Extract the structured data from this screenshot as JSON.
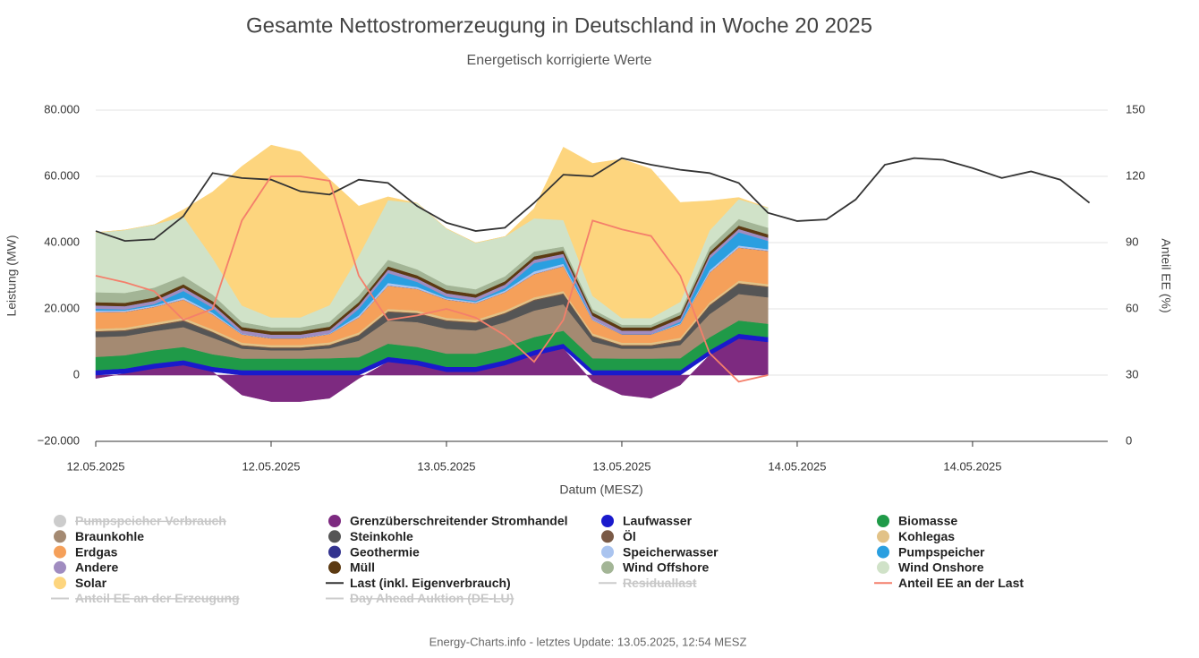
{
  "chart_data": {
    "type": "area",
    "title": "Gesamte Nettostromerzeugung in Deutschland in Woche 20 2025",
    "subtitle": "Energetisch korrigierte Werte",
    "x_label": "Datum (MESZ)",
    "y_label": "Leistung (MW)",
    "y2_label": "Anteil EE (%)",
    "footer": "Energy-Charts.info - letztes Update: 13.05.2025, 12:54 MESZ",
    "stacked": true,
    "grid": true,
    "legend": "bottom",
    "x": [
      0,
      2,
      4,
      6,
      8,
      10,
      12,
      14,
      16,
      18,
      20,
      22,
      24,
      26,
      28,
      30,
      32,
      34,
      36,
      38,
      40,
      42,
      44,
      46,
      48,
      50,
      52,
      54,
      56,
      58,
      60,
      62,
      64,
      66,
      68
    ],
    "xlim": [
      0,
      69.25
    ],
    "xticks": [
      {
        "value": 0,
        "label": "12.05.2025"
      },
      {
        "value": 12,
        "label": "12.05.2025"
      },
      {
        "value": 24,
        "label": "13.05.2025"
      },
      {
        "value": 36,
        "label": "13.05.2025"
      },
      {
        "value": 48,
        "label": "14.05.2025"
      },
      {
        "value": 60,
        "label": "14.05.2025"
      }
    ],
    "ylim": [
      -20000,
      80000
    ],
    "yticks": [
      {
        "value": -20000,
        "label": "−20.000"
      },
      0,
      {
        "value": 20000,
        "label": "20.000"
      },
      {
        "value": 40000,
        "label": "40.000"
      },
      {
        "value": 60000,
        "label": "60.000"
      },
      {
        "value": 80000,
        "label": "80.000"
      }
    ],
    "y2lim": [
      0,
      150
    ],
    "y2ticks": [
      0,
      30,
      60,
      90,
      120,
      150
    ],
    "series": [
      {
        "name": "Pumpspeicher Verbrauch",
        "type": "area",
        "color": "#cccccc",
        "visible": false
      },
      {
        "name": "Grenzüberschreitender Stromhandel",
        "type": "area",
        "color": "#7d2a80",
        "values": [
          -1000,
          500,
          2000,
          3000,
          1000,
          -6000,
          -8000,
          -8000,
          -7000,
          -1000,
          4000,
          3000,
          1000,
          1000,
          3000,
          6000,
          8000,
          -2000,
          -6000,
          -7000,
          -3000,
          6000,
          11000,
          10000,
          null,
          null,
          null,
          null,
          null,
          null,
          null,
          null,
          null,
          null,
          null
        ]
      },
      {
        "name": "Laufwasser",
        "type": "area",
        "color": "#1a1acc",
        "values": [
          1500,
          1500,
          1500,
          1500,
          1500,
          1500,
          1500,
          1500,
          1500,
          1500,
          1500,
          1500,
          1500,
          1500,
          1500,
          1500,
          1500,
          1500,
          1500,
          1500,
          1500,
          1500,
          1500,
          1500,
          null,
          null,
          null,
          null,
          null,
          null,
          null,
          null,
          null,
          null,
          null
        ]
      },
      {
        "name": "Biomasse",
        "type": "area",
        "color": "#1f9a48",
        "values": [
          4000,
          4000,
          4000,
          4000,
          3800,
          3500,
          3500,
          3500,
          3600,
          3900,
          4000,
          4000,
          4000,
          4000,
          4000,
          4000,
          3900,
          3600,
          3500,
          3500,
          3600,
          3900,
          4000,
          4000,
          null,
          null,
          null,
          null,
          null,
          null,
          null,
          null,
          null,
          null,
          null
        ]
      },
      {
        "name": "Braunkohle",
        "type": "area",
        "color": "#a48a72",
        "values": [
          6000,
          5800,
          5800,
          6000,
          5000,
          3000,
          2500,
          2500,
          3000,
          5000,
          7000,
          7500,
          7500,
          7000,
          7500,
          8000,
          8000,
          5000,
          3000,
          3000,
          4000,
          7000,
          8000,
          8000,
          null,
          null,
          null,
          null,
          null,
          null,
          null,
          null,
          null,
          null,
          null
        ]
      },
      {
        "name": "Steinkohle",
        "type": "area",
        "color": "#555555",
        "values": [
          1500,
          1500,
          1500,
          1800,
          1500,
          800,
          600,
          600,
          800,
          1500,
          2500,
          2500,
          2300,
          2200,
          2500,
          3000,
          3000,
          1500,
          800,
          800,
          1200,
          2500,
          3000,
          3000,
          null,
          null,
          null,
          null,
          null,
          null,
          null,
          null,
          null,
          null,
          null
        ]
      },
      {
        "name": "Öl",
        "type": "area",
        "color": "#7a5a46",
        "values": [
          300,
          300,
          300,
          300,
          300,
          300,
          300,
          300,
          300,
          300,
          300,
          300,
          300,
          300,
          300,
          300,
          300,
          300,
          300,
          300,
          300,
          300,
          300,
          300,
          null,
          null,
          null,
          null,
          null,
          null,
          null,
          null,
          null,
          null,
          null
        ]
      },
      {
        "name": "Kohlegas",
        "type": "area",
        "color": "#e2c287",
        "values": [
          700,
          700,
          700,
          700,
          700,
          700,
          700,
          700,
          700,
          700,
          700,
          700,
          700,
          700,
          700,
          700,
          700,
          700,
          700,
          700,
          700,
          700,
          700,
          700,
          null,
          null,
          null,
          null,
          null,
          null,
          null,
          null,
          null,
          null,
          null
        ]
      },
      {
        "name": "Erdgas",
        "type": "area",
        "color": "#f5a05a",
        "values": [
          5000,
          4800,
          4800,
          5500,
          4500,
          2500,
          2000,
          2000,
          2500,
          4500,
          7000,
          6500,
          5500,
          5000,
          5500,
          7000,
          7500,
          4000,
          2500,
          2500,
          4000,
          9000,
          10000,
          10000,
          null,
          null,
          null,
          null,
          null,
          null,
          null,
          null,
          null,
          null,
          null
        ]
      },
      {
        "name": "Geothermie",
        "type": "area",
        "color": "#33338f",
        "values": [
          30,
          30,
          30,
          30,
          30,
          30,
          30,
          30,
          30,
          30,
          30,
          30,
          30,
          30,
          30,
          30,
          30,
          30,
          30,
          30,
          30,
          30,
          30,
          30,
          null,
          null,
          null,
          null,
          null,
          null,
          null,
          null,
          null,
          null,
          null
        ]
      },
      {
        "name": "Speicherwasser",
        "type": "area",
        "color": "#aac4ef",
        "values": [
          500,
          400,
          400,
          600,
          500,
          200,
          100,
          100,
          200,
          600,
          800,
          600,
          400,
          400,
          500,
          800,
          700,
          300,
          100,
          100,
          300,
          700,
          600,
          500,
          null,
          null,
          null,
          null,
          null,
          null,
          null,
          null,
          null,
          null,
          null
        ]
      },
      {
        "name": "Pumpspeicher",
        "type": "area",
        "color": "#2a9fe0",
        "values": [
          500,
          300,
          400,
          2000,
          1500,
          0,
          0,
          0,
          0,
          2000,
          3000,
          1500,
          500,
          300,
          800,
          2500,
          2000,
          0,
          0,
          0,
          500,
          3500,
          4000,
          2500,
          null,
          null,
          null,
          null,
          null,
          null,
          null,
          null,
          null,
          null,
          null
        ]
      },
      {
        "name": "Andere",
        "type": "area",
        "color": "#a08cc0",
        "values": [
          1000,
          1000,
          1000,
          1000,
          1000,
          1000,
          1000,
          1000,
          1000,
          1000,
          1000,
          1000,
          1000,
          1000,
          1000,
          1000,
          1000,
          1000,
          1000,
          1000,
          1000,
          1000,
          1000,
          1000,
          null,
          null,
          null,
          null,
          null,
          null,
          null,
          null,
          null,
          null,
          null
        ]
      },
      {
        "name": "Müll",
        "type": "area",
        "color": "#5c3a12",
        "values": [
          1000,
          1000,
          1000,
          1000,
          1000,
          1000,
          1000,
          1000,
          1000,
          1000,
          1000,
          1000,
          1000,
          1000,
          1000,
          1000,
          1000,
          1000,
          1000,
          1000,
          1000,
          1000,
          1000,
          1000,
          null,
          null,
          null,
          null,
          null,
          null,
          null,
          null,
          null,
          null,
          null
        ]
      },
      {
        "name": "Wind Offshore",
        "type": "area",
        "color": "#a3b596",
        "values": [
          3000,
          3000,
          3000,
          2500,
          2000,
          1500,
          1200,
          1200,
          1500,
          2000,
          2000,
          1800,
          1500,
          1500,
          1500,
          1500,
          1200,
          1000,
          800,
          800,
          1000,
          1500,
          2000,
          2000,
          null,
          null,
          null,
          null,
          null,
          null,
          null,
          null,
          null,
          null,
          null
        ]
      },
      {
        "name": "Wind Onshore",
        "type": "area",
        "color": "#d0e2c8",
        "values": [
          18000,
          19000,
          19000,
          18000,
          11000,
          5000,
          3000,
          3000,
          5000,
          12000,
          18000,
          20000,
          17000,
          14000,
          12000,
          10000,
          8000,
          4000,
          2000,
          2000,
          3000,
          5000,
          6000,
          6000,
          null,
          null,
          null,
          null,
          null,
          null,
          null,
          null,
          null,
          null,
          null
        ]
      },
      {
        "name": "Solar",
        "type": "area",
        "color": "#fdd57e",
        "values": [
          0,
          0,
          0,
          2000,
          20000,
          42000,
          52000,
          50000,
          38000,
          15000,
          1000,
          0,
          0,
          0,
          0,
          3000,
          22000,
          40000,
          48000,
          45000,
          30000,
          9000,
          500,
          0,
          null,
          null,
          null,
          null,
          null,
          null,
          null,
          null,
          null,
          null,
          null
        ]
      },
      {
        "name": "Last (inkl. Eigenverbrauch)",
        "type": "line",
        "color": "#333333",
        "values": [
          43500,
          40500,
          41000,
          48000,
          61000,
          59500,
          59000,
          55500,
          54500,
          59000,
          58000,
          51000,
          46000,
          43500,
          44500,
          52000,
          60500,
          60000,
          65500,
          63500,
          62000,
          61000,
          58000,
          49000,
          46500,
          47000,
          53000,
          63500,
          65500,
          65000,
          62500,
          59500,
          61500,
          59000,
          52000
        ]
      },
      {
        "name": "Residuallast",
        "type": "line",
        "color": "#cccccc",
        "visible": false
      },
      {
        "name": "Anteil EE an der Last",
        "type": "line",
        "axis": "y2",
        "color": "#f47f6b",
        "values": [
          75,
          72,
          68,
          55,
          60,
          100,
          120,
          120,
          118,
          75,
          55,
          57,
          60,
          56,
          48,
          36,
          55,
          100,
          96,
          93,
          75,
          40,
          27,
          30,
          null,
          null,
          null,
          null,
          null,
          null,
          null,
          null,
          null,
          null,
          null
        ]
      },
      {
        "name": "Anteil EE an der Erzeugung",
        "type": "line",
        "color": "#cccccc",
        "visible": false
      },
      {
        "name": "Day Ahead Auktion (DE-LU)",
        "type": "line",
        "color": "#cccccc",
        "visible": false
      }
    ]
  }
}
